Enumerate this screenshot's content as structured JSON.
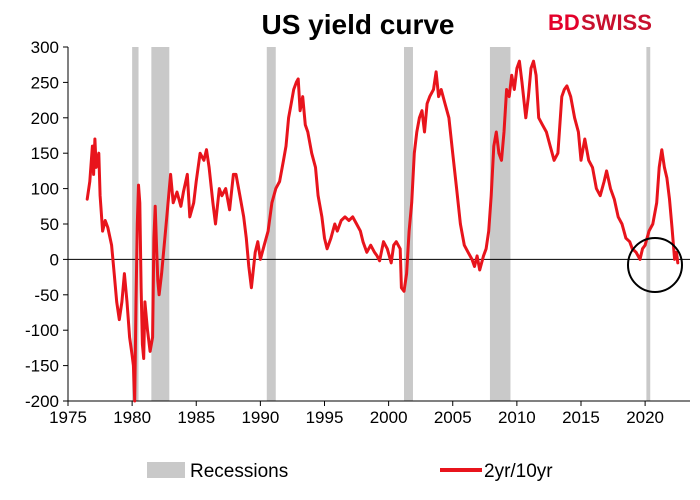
{
  "chart_data": {
    "type": "line",
    "title": "US yield curve",
    "xlabel": "",
    "ylabel": "",
    "xlim": [
      1975,
      2023.5
    ],
    "ylim": [
      -200,
      300
    ],
    "x_ticks": [
      1975,
      1980,
      1985,
      1990,
      1995,
      2000,
      2005,
      2010,
      2015,
      2020
    ],
    "y_ticks": [
      300,
      250,
      200,
      150,
      100,
      50,
      0,
      -50,
      -100,
      -150,
      -200
    ],
    "grid": false,
    "legend_position": "bottom",
    "recessions": [
      {
        "start": 1980.0,
        "end": 1980.5
      },
      {
        "start": 1981.5,
        "end": 1982.9
      },
      {
        "start": 1990.5,
        "end": 1991.2
      },
      {
        "start": 2001.2,
        "end": 2001.9
      },
      {
        "start": 2007.9,
        "end": 2009.5
      },
      {
        "start": 2020.1,
        "end": 2020.4
      }
    ],
    "legend": {
      "recessions_label": "Recessions",
      "series_label": "2yr/10yr"
    },
    "series": [
      {
        "name": "2yr/10yr",
        "color": "#e8141c",
        "points": [
          [
            1976.5,
            85
          ],
          [
            1976.7,
            110
          ],
          [
            1976.9,
            160
          ],
          [
            1977.0,
            120
          ],
          [
            1977.1,
            170
          ],
          [
            1977.2,
            130
          ],
          [
            1977.4,
            150
          ],
          [
            1977.5,
            90
          ],
          [
            1977.7,
            40
          ],
          [
            1977.9,
            55
          ],
          [
            1978.1,
            45
          ],
          [
            1978.4,
            20
          ],
          [
            1978.6,
            -20
          ],
          [
            1978.8,
            -60
          ],
          [
            1979.0,
            -85
          ],
          [
            1979.2,
            -60
          ],
          [
            1979.4,
            -20
          ],
          [
            1979.6,
            -60
          ],
          [
            1979.8,
            -110
          ],
          [
            1980.0,
            -135
          ],
          [
            1980.1,
            -150
          ],
          [
            1980.2,
            -200
          ],
          [
            1980.3,
            -60
          ],
          [
            1980.4,
            50
          ],
          [
            1980.5,
            105
          ],
          [
            1980.6,
            80
          ],
          [
            1980.7,
            -40
          ],
          [
            1980.8,
            -120
          ],
          [
            1980.9,
            -140
          ],
          [
            1981.0,
            -60
          ],
          [
            1981.2,
            -100
          ],
          [
            1981.4,
            -130
          ],
          [
            1981.6,
            -110
          ],
          [
            1981.7,
            30
          ],
          [
            1981.8,
            75
          ],
          [
            1981.9,
            20
          ],
          [
            1982.0,
            -30
          ],
          [
            1982.1,
            -50
          ],
          [
            1982.3,
            -20
          ],
          [
            1982.5,
            20
          ],
          [
            1982.7,
            60
          ],
          [
            1982.9,
            100
          ],
          [
            1983.0,
            120
          ],
          [
            1983.2,
            80
          ],
          [
            1983.5,
            95
          ],
          [
            1983.8,
            75
          ],
          [
            1984.0,
            95
          ],
          [
            1984.3,
            120
          ],
          [
            1984.5,
            60
          ],
          [
            1984.8,
            80
          ],
          [
            1985.0,
            110
          ],
          [
            1985.3,
            150
          ],
          [
            1985.6,
            140
          ],
          [
            1985.8,
            155
          ],
          [
            1986.0,
            130
          ],
          [
            1986.3,
            80
          ],
          [
            1986.5,
            50
          ],
          [
            1986.8,
            100
          ],
          [
            1987.0,
            90
          ],
          [
            1987.3,
            100
          ],
          [
            1987.6,
            70
          ],
          [
            1987.9,
            120
          ],
          [
            1988.1,
            120
          ],
          [
            1988.4,
            90
          ],
          [
            1988.7,
            60
          ],
          [
            1988.9,
            30
          ],
          [
            1989.1,
            -10
          ],
          [
            1989.3,
            -40
          ],
          [
            1989.6,
            10
          ],
          [
            1989.8,
            25
          ],
          [
            1990.0,
            0
          ],
          [
            1990.3,
            20
          ],
          [
            1990.6,
            40
          ],
          [
            1990.9,
            80
          ],
          [
            1991.2,
            100
          ],
          [
            1991.5,
            110
          ],
          [
            1991.8,
            140
          ],
          [
            1992.0,
            160
          ],
          [
            1992.2,
            200
          ],
          [
            1992.4,
            220
          ],
          [
            1992.6,
            240
          ],
          [
            1992.8,
            250
          ],
          [
            1992.95,
            255
          ],
          [
            1993.1,
            210
          ],
          [
            1993.3,
            230
          ],
          [
            1993.5,
            190
          ],
          [
            1993.7,
            180
          ],
          [
            1994.0,
            150
          ],
          [
            1994.3,
            130
          ],
          [
            1994.5,
            90
          ],
          [
            1994.8,
            60
          ],
          [
            1995.0,
            30
          ],
          [
            1995.2,
            15
          ],
          [
            1995.5,
            30
          ],
          [
            1995.8,
            50
          ],
          [
            1996.0,
            40
          ],
          [
            1996.3,
            55
          ],
          [
            1996.6,
            60
          ],
          [
            1996.9,
            55
          ],
          [
            1997.2,
            60
          ],
          [
            1997.5,
            50
          ],
          [
            1997.8,
            40
          ],
          [
            1998.0,
            25
          ],
          [
            1998.3,
            10
          ],
          [
            1998.6,
            20
          ],
          [
            1998.9,
            10
          ],
          [
            1999.1,
            5
          ],
          [
            1999.3,
            -2
          ],
          [
            1999.6,
            25
          ],
          [
            1999.9,
            15
          ],
          [
            2000.2,
            -5
          ],
          [
            2000.4,
            20
          ],
          [
            2000.6,
            25
          ],
          [
            2000.9,
            15
          ],
          [
            2001.0,
            -40
          ],
          [
            2001.2,
            -45
          ],
          [
            2001.4,
            -20
          ],
          [
            2001.6,
            40
          ],
          [
            2001.8,
            80
          ],
          [
            2002.0,
            150
          ],
          [
            2002.2,
            180
          ],
          [
            2002.4,
            200
          ],
          [
            2002.6,
            210
          ],
          [
            2002.8,
            180
          ],
          [
            2003.0,
            220
          ],
          [
            2003.2,
            230
          ],
          [
            2003.5,
            240
          ],
          [
            2003.7,
            265
          ],
          [
            2003.9,
            230
          ],
          [
            2004.1,
            240
          ],
          [
            2004.4,
            220
          ],
          [
            2004.7,
            200
          ],
          [
            2005.0,
            150
          ],
          [
            2005.3,
            100
          ],
          [
            2005.6,
            50
          ],
          [
            2005.9,
            20
          ],
          [
            2006.2,
            10
          ],
          [
            2006.5,
            0
          ],
          [
            2006.7,
            -10
          ],
          [
            2006.9,
            5
          ],
          [
            2007.1,
            -15
          ],
          [
            2007.4,
            5
          ],
          [
            2007.6,
            15
          ],
          [
            2007.8,
            40
          ],
          [
            2008.0,
            90
          ],
          [
            2008.2,
            160
          ],
          [
            2008.4,
            180
          ],
          [
            2008.6,
            150
          ],
          [
            2008.8,
            140
          ],
          [
            2009.0,
            180
          ],
          [
            2009.2,
            240
          ],
          [
            2009.4,
            230
          ],
          [
            2009.6,
            260
          ],
          [
            2009.8,
            240
          ],
          [
            2010.0,
            270
          ],
          [
            2010.2,
            280
          ],
          [
            2010.4,
            250
          ],
          [
            2010.7,
            200
          ],
          [
            2010.9,
            230
          ],
          [
            2011.1,
            270
          ],
          [
            2011.3,
            280
          ],
          [
            2011.5,
            260
          ],
          [
            2011.7,
            200
          ],
          [
            2012.0,
            190
          ],
          [
            2012.3,
            180
          ],
          [
            2012.6,
            160
          ],
          [
            2012.9,
            140
          ],
          [
            2013.2,
            150
          ],
          [
            2013.5,
            230
          ],
          [
            2013.7,
            240
          ],
          [
            2013.9,
            245
          ],
          [
            2014.2,
            230
          ],
          [
            2014.5,
            200
          ],
          [
            2014.8,
            180
          ],
          [
            2015.0,
            140
          ],
          [
            2015.3,
            170
          ],
          [
            2015.6,
            140
          ],
          [
            2015.9,
            130
          ],
          [
            2016.2,
            100
          ],
          [
            2016.5,
            90
          ],
          [
            2016.8,
            110
          ],
          [
            2017.0,
            125
          ],
          [
            2017.3,
            100
          ],
          [
            2017.6,
            85
          ],
          [
            2017.9,
            60
          ],
          [
            2018.2,
            50
          ],
          [
            2018.5,
            30
          ],
          [
            2018.8,
            25
          ],
          [
            2019.0,
            15
          ],
          [
            2019.3,
            10
          ],
          [
            2019.6,
            0
          ],
          [
            2019.8,
            15
          ],
          [
            2020.0,
            20
          ],
          [
            2020.3,
            40
          ],
          [
            2020.6,
            50
          ],
          [
            2020.9,
            80
          ],
          [
            2021.1,
            130
          ],
          [
            2021.3,
            155
          ],
          [
            2021.5,
            130
          ],
          [
            2021.7,
            115
          ],
          [
            2021.9,
            85
          ],
          [
            2022.1,
            45
          ],
          [
            2022.3,
            0
          ],
          [
            2022.45,
            10
          ],
          [
            2022.55,
            -5
          ]
        ]
      }
    ]
  },
  "logo": {
    "part1": "BD",
    "part2": "SWISS"
  },
  "colors": {
    "recession_fill": "#c9c9c9",
    "circle_stroke": "#000000"
  }
}
